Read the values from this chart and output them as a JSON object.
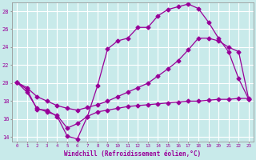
{
  "xlabel": "Windchill (Refroidissement éolien,°C)",
  "bg_color": "#c8eaea",
  "grid_color": "#ffffff",
  "line_color": "#990099",
  "xlim": [
    -0.5,
    23.5
  ],
  "ylim": [
    13.5,
    29.0
  ],
  "yticks": [
    14,
    16,
    18,
    20,
    22,
    24,
    26,
    28
  ],
  "xticks": [
    0,
    1,
    2,
    3,
    4,
    5,
    6,
    7,
    8,
    9,
    10,
    11,
    12,
    13,
    14,
    15,
    16,
    17,
    18,
    19,
    20,
    21,
    22,
    23
  ],
  "line1_x": [
    0,
    1,
    2,
    3,
    4,
    5,
    6,
    7,
    8,
    9,
    10,
    11,
    12,
    13,
    14,
    15,
    16,
    17,
    18,
    19,
    20,
    21,
    22,
    23
  ],
  "line1_y": [
    20.1,
    19.3,
    17.1,
    17.0,
    16.3,
    14.1,
    13.8,
    16.3,
    19.7,
    23.8,
    24.7,
    25.0,
    26.2,
    26.2,
    27.5,
    28.2,
    28.5,
    28.8,
    28.3,
    26.8,
    25.0,
    23.5,
    20.5,
    18.2
  ],
  "line2_x": [
    0,
    1,
    2,
    3,
    4,
    5,
    6,
    7,
    8,
    9,
    10,
    11,
    12,
    13,
    14,
    15,
    16,
    17,
    18,
    19,
    20,
    21,
    22,
    23
  ],
  "line2_y": [
    20.1,
    19.5,
    18.5,
    18.0,
    17.5,
    17.2,
    17.0,
    17.3,
    17.6,
    18.0,
    18.5,
    19.0,
    19.5,
    20.0,
    20.8,
    21.6,
    22.5,
    23.7,
    25.0,
    25.0,
    24.7,
    24.0,
    23.5,
    18.2
  ],
  "line3_x": [
    0,
    1,
    2,
    3,
    4,
    5,
    6,
    7,
    8,
    9,
    10,
    11,
    12,
    13,
    14,
    15,
    16,
    17,
    18,
    19,
    20,
    21,
    22,
    23
  ],
  "line3_y": [
    20.1,
    19.0,
    17.2,
    16.8,
    16.4,
    15.0,
    15.5,
    16.3,
    16.8,
    17.0,
    17.2,
    17.4,
    17.5,
    17.6,
    17.7,
    17.8,
    17.9,
    18.0,
    18.0,
    18.1,
    18.2,
    18.2,
    18.3,
    18.3
  ]
}
